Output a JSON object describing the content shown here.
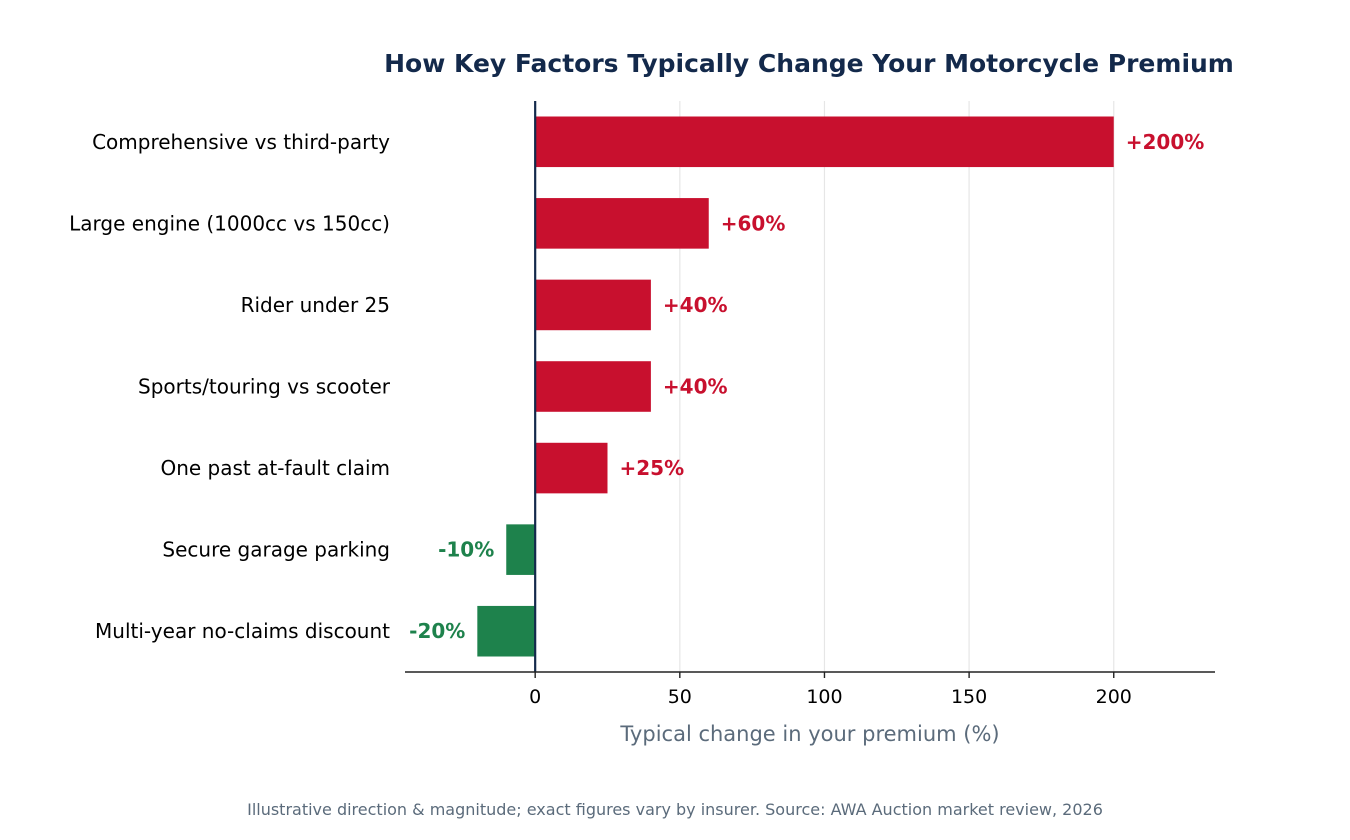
{
  "chart_data": {
    "type": "bar",
    "orientation": "horizontal",
    "title": "How Key Factors Typically Change Your Motorcycle Premium",
    "xlabel": "Typical change in your premium (%)",
    "ylabel": "",
    "categories": [
      "Comprehensive vs third-party",
      "Large engine (1000cc vs 150cc)",
      "Rider under 25",
      "Sports/touring vs scooter",
      "One past at-fault claim",
      "Secure garage parking",
      "Multi-year no-claims discount"
    ],
    "values": [
      200,
      60,
      40,
      40,
      25,
      -10,
      -20
    ],
    "value_labels": [
      "+200%",
      "+60%",
      "+40%",
      "+40%",
      "+25%",
      "-10%",
      "-20%"
    ],
    "xlim": [
      -45,
      235
    ],
    "xticks": [
      0,
      50,
      100,
      150,
      200
    ],
    "grid": "vertical",
    "colors": {
      "increase": "#c8102e",
      "decrease": "#1e824c",
      "axis": "#13294b",
      "grid": "#e6e6e6"
    }
  },
  "footnote": "Illustrative direction & magnitude; exact figures vary by insurer.  Source: AWA Auction market review, 2026"
}
